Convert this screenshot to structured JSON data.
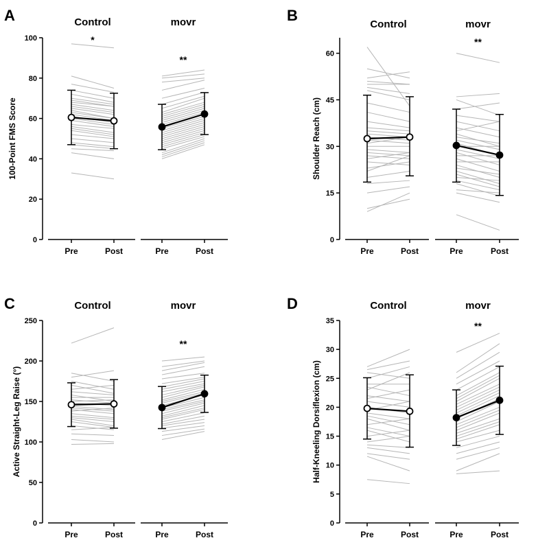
{
  "chart_data": [
    {
      "type": "line",
      "panel": "A",
      "ylabel": "100-Point FMS Score",
      "ylim": [
        0,
        100
      ],
      "yticks": [
        0,
        20,
        40,
        60,
        80,
        100
      ],
      "x": [
        "Pre",
        "Post"
      ],
      "groups": [
        {
          "name": "Control",
          "significance": "*",
          "mean": [
            60.5,
            58.8
          ],
          "sd_low": [
            47,
            45
          ],
          "sd_high": [
            74,
            72.5
          ],
          "marker": "open",
          "individuals": [
            [
              97,
              95
            ],
            [
              81,
              75
            ],
            [
              77,
              73
            ],
            [
              74,
              70
            ],
            [
              72,
              68
            ],
            [
              70,
              67
            ],
            [
              69,
              66
            ],
            [
              68,
              66
            ],
            [
              67,
              64
            ],
            [
              66,
              63
            ],
            [
              65,
              62
            ],
            [
              64,
              60
            ],
            [
              63,
              60
            ],
            [
              62,
              59
            ],
            [
              61,
              58
            ],
            [
              60,
              57
            ],
            [
              59,
              56
            ],
            [
              57,
              55
            ],
            [
              56,
              53
            ],
            [
              55,
              52
            ],
            [
              54,
              51
            ],
            [
              52,
              50
            ],
            [
              50,
              48
            ],
            [
              48,
              46
            ],
            [
              47,
              45
            ],
            [
              45,
              44
            ],
            [
              43,
              40
            ],
            [
              33,
              30
            ]
          ]
        },
        {
          "name": "movr",
          "significance": "**",
          "mean": [
            55.8,
            62.2
          ],
          "sd_low": [
            44.5,
            52
          ],
          "sd_high": [
            67,
            72.8
          ],
          "marker": "filled",
          "individuals": [
            [
              81,
              84
            ],
            [
              80,
              82
            ],
            [
              78,
              80
            ],
            [
              74,
              79
            ],
            [
              70,
              75
            ],
            [
              67,
              73
            ],
            [
              65,
              71
            ],
            [
              63,
              70
            ],
            [
              62,
              68
            ],
            [
              61,
              67
            ],
            [
              60,
              66
            ],
            [
              59,
              65
            ],
            [
              58,
              64
            ],
            [
              57,
              63
            ],
            [
              56,
              62
            ],
            [
              55,
              61
            ],
            [
              54,
              60
            ],
            [
              53,
              59
            ],
            [
              52,
              58
            ],
            [
              51,
              57
            ],
            [
              50,
              56
            ],
            [
              49,
              55
            ],
            [
              48,
              54
            ],
            [
              47,
              53
            ],
            [
              46,
              52
            ],
            [
              45,
              51
            ],
            [
              43,
              50
            ],
            [
              42,
              49
            ],
            [
              41,
              48
            ],
            [
              40,
              47
            ]
          ]
        }
      ]
    },
    {
      "type": "line",
      "panel": "B",
      "ylabel": "Shoulder Reach (cm)",
      "ylim": [
        0,
        65
      ],
      "yticks": [
        0,
        15,
        30,
        45,
        60
      ],
      "x": [
        "Pre",
        "Post"
      ],
      "groups": [
        {
          "name": "Control",
          "significance": "",
          "mean": [
            32.5,
            33
          ],
          "sd_low": [
            18.5,
            20.5
          ],
          "sd_high": [
            46.5,
            46
          ],
          "marker": "open",
          "individuals": [
            [
              62,
              43
            ],
            [
              55,
              52
            ],
            [
              52,
              54
            ],
            [
              51,
              50
            ],
            [
              50,
              50
            ],
            [
              49,
              47
            ],
            [
              48,
              45
            ],
            [
              44,
              41
            ],
            [
              41,
              38
            ],
            [
              38,
              36
            ],
            [
              36,
              35
            ],
            [
              35,
              34
            ],
            [
              34,
              33
            ],
            [
              33,
              32
            ],
            [
              32,
              31
            ],
            [
              31,
              33
            ],
            [
              30,
              30
            ],
            [
              29,
              28
            ],
            [
              28,
              27
            ],
            [
              27,
              26
            ],
            [
              26,
              28
            ],
            [
              25,
              24
            ],
            [
              23,
              25
            ],
            [
              22,
              27
            ],
            [
              20,
              22
            ],
            [
              18,
              19
            ],
            [
              15,
              17
            ],
            [
              10,
              13
            ],
            [
              9,
              15
            ]
          ]
        },
        {
          "name": "movr",
          "significance": "**",
          "mean": [
            30.3,
            27.2
          ],
          "sd_low": [
            18.5,
            14.2
          ],
          "sd_high": [
            42,
            40.3
          ],
          "marker": "filled",
          "individuals": [
            [
              60,
              57
            ],
            [
              46,
              47
            ],
            [
              45,
              40
            ],
            [
              42,
              44
            ],
            [
              40,
              38
            ],
            [
              38,
              35
            ],
            [
              36,
              33
            ],
            [
              35,
              38
            ],
            [
              34,
              30
            ],
            [
              33,
              31
            ],
            [
              32,
              29
            ],
            [
              31,
              27
            ],
            [
              30,
              30
            ],
            [
              29,
              26
            ],
            [
              28,
              24
            ],
            [
              27,
              27
            ],
            [
              26,
              22
            ],
            [
              25,
              25
            ],
            [
              24,
              20
            ],
            [
              23,
              21
            ],
            [
              22,
              18
            ],
            [
              21,
              17
            ],
            [
              20,
              19
            ],
            [
              19,
              16
            ],
            [
              18,
              14
            ],
            [
              16,
              15
            ],
            [
              15,
              12
            ],
            [
              8,
              3
            ]
          ]
        }
      ]
    },
    {
      "type": "line",
      "panel": "C",
      "ylabel": "Active Straight-Leg Raise (°)",
      "ylim": [
        0,
        250
      ],
      "yticks": [
        0,
        50,
        100,
        150,
        200,
        250
      ],
      "x": [
        "Pre",
        "Post"
      ],
      "groups": [
        {
          "name": "Control",
          "significance": "",
          "mean": [
            146,
            147
          ],
          "sd_low": [
            119,
            117
          ],
          "sd_high": [
            173,
            177
          ],
          "marker": "open",
          "individuals": [
            [
              222,
              241
            ],
            [
              185,
              175
            ],
            [
              180,
              188
            ],
            [
              175,
              165
            ],
            [
              170,
              160
            ],
            [
              165,
              170
            ],
            [
              162,
              158
            ],
            [
              158,
              150
            ],
            [
              155,
              155
            ],
            [
              152,
              148
            ],
            [
              150,
              152
            ],
            [
              148,
              145
            ],
            [
              146,
              147
            ],
            [
              144,
              140
            ],
            [
              142,
              138
            ],
            [
              140,
              135
            ],
            [
              138,
              142
            ],
            [
              135,
              130
            ],
            [
              132,
              128
            ],
            [
              130,
              125
            ],
            [
              128,
              120
            ],
            [
              125,
              118
            ],
            [
              120,
              115
            ],
            [
              115,
              118
            ],
            [
              110,
              108
            ],
            [
              103,
              100
            ],
            [
              97,
              98
            ]
          ]
        },
        {
          "name": "movr",
          "significance": "**",
          "mean": [
            142.5,
            159.5
          ],
          "sd_low": [
            116.5,
            136.5
          ],
          "sd_high": [
            168.5,
            182.5
          ],
          "marker": "filled",
          "individuals": [
            [
              200,
              205
            ],
            [
              193,
              200
            ],
            [
              188,
              198
            ],
            [
              183,
              193
            ],
            [
              178,
              185
            ],
            [
              172,
              180
            ],
            [
              168,
              178
            ],
            [
              165,
              175
            ],
            [
              162,
              172
            ],
            [
              158,
              170
            ],
            [
              155,
              168
            ],
            [
              152,
              165
            ],
            [
              150,
              162
            ],
            [
              148,
              160
            ],
            [
              145,
              158
            ],
            [
              142,
              155
            ],
            [
              140,
              152
            ],
            [
              138,
              150
            ],
            [
              135,
              148
            ],
            [
              132,
              145
            ],
            [
              130,
              142
            ],
            [
              128,
              140
            ],
            [
              125,
              136
            ],
            [
              122,
              132
            ],
            [
              120,
              128
            ],
            [
              117,
              124
            ],
            [
              113,
              120
            ],
            [
              108,
              116
            ],
            [
              103,
              113
            ]
          ]
        }
      ]
    },
    {
      "type": "line",
      "panel": "D",
      "ylabel": "Half-Kneeling Dorsiflexion (cm)",
      "ylim": [
        0,
        35
      ],
      "yticks": [
        0,
        5,
        10,
        15,
        20,
        25,
        30,
        35
      ],
      "x": [
        "Pre",
        "Post"
      ],
      "groups": [
        {
          "name": "Control",
          "significance": "",
          "mean": [
            19.8,
            19.3
          ],
          "sd_low": [
            14.5,
            13.1
          ],
          "sd_high": [
            25.1,
            25.6
          ],
          "marker": "open",
          "individuals": [
            [
              27,
              30
            ],
            [
              26.5,
              28
            ],
            [
              26,
              25
            ],
            [
              25,
              27
            ],
            [
              24,
              24
            ],
            [
              23.5,
              22
            ],
            [
              23,
              26
            ],
            [
              22,
              21
            ],
            [
              21.5,
              23
            ],
            [
              21,
              20
            ],
            [
              20,
              19
            ],
            [
              19.5,
              21
            ],
            [
              19,
              18
            ],
            [
              18.5,
              17
            ],
            [
              18,
              16
            ],
            [
              17,
              18
            ],
            [
              16.5,
              15
            ],
            [
              16,
              14
            ],
            [
              15,
              16
            ],
            [
              14,
              15
            ],
            [
              13.5,
              13
            ],
            [
              13,
              12
            ],
            [
              12,
              11
            ],
            [
              11.5,
              9
            ],
            [
              7.5,
              6.8
            ]
          ]
        },
        {
          "name": "movr",
          "significance": "**",
          "mean": [
            18.2,
            21.2
          ],
          "sd_low": [
            13.4,
            15.3
          ],
          "sd_high": [
            23,
            27.1
          ],
          "marker": "filled",
          "individuals": [
            [
              29.5,
              32.8
            ],
            [
              26,
              31
            ],
            [
              25,
              29.5
            ],
            [
              24,
              28
            ],
            [
              23,
              27
            ],
            [
              22,
              26
            ],
            [
              21.5,
              25.5
            ],
            [
              21,
              25
            ],
            [
              20.5,
              24
            ],
            [
              20,
              23.5
            ],
            [
              19.5,
              23
            ],
            [
              19,
              22.5
            ],
            [
              18.5,
              22
            ],
            [
              18,
              21.5
            ],
            [
              17.5,
              21
            ],
            [
              17,
              20
            ],
            [
              16.5,
              19.5
            ],
            [
              16,
              19
            ],
            [
              15.5,
              18
            ],
            [
              15,
              17.5
            ],
            [
              14.5,
              17
            ],
            [
              14,
              16
            ],
            [
              13,
              15
            ],
            [
              12,
              14
            ],
            [
              11,
              13
            ],
            [
              9,
              12
            ],
            [
              8.5,
              9
            ]
          ]
        }
      ]
    }
  ]
}
